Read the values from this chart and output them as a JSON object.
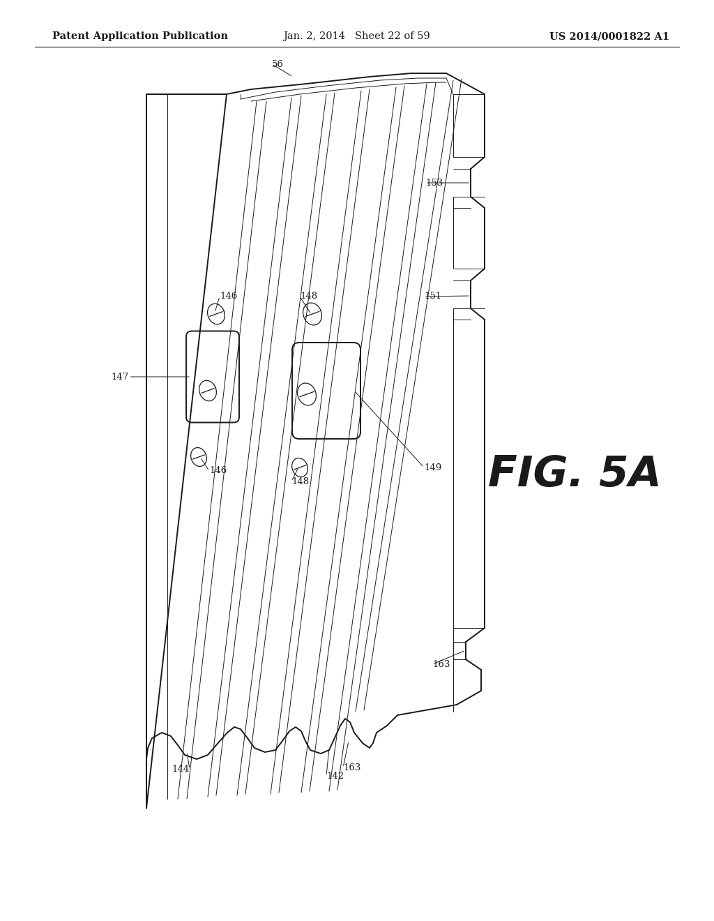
{
  "header_left": "Patent Application Publication",
  "header_center": "Jan. 2, 2014   Sheet 22 of 59",
  "header_right": "US 2014/0001822 A1",
  "fig_label": "FIG. 5A",
  "bg_color": "#ffffff",
  "line_color": "#1a1a1a",
  "header_fontsize": 10.5,
  "fig_label_fontsize": 44,
  "ann_fontsize": 9.5
}
